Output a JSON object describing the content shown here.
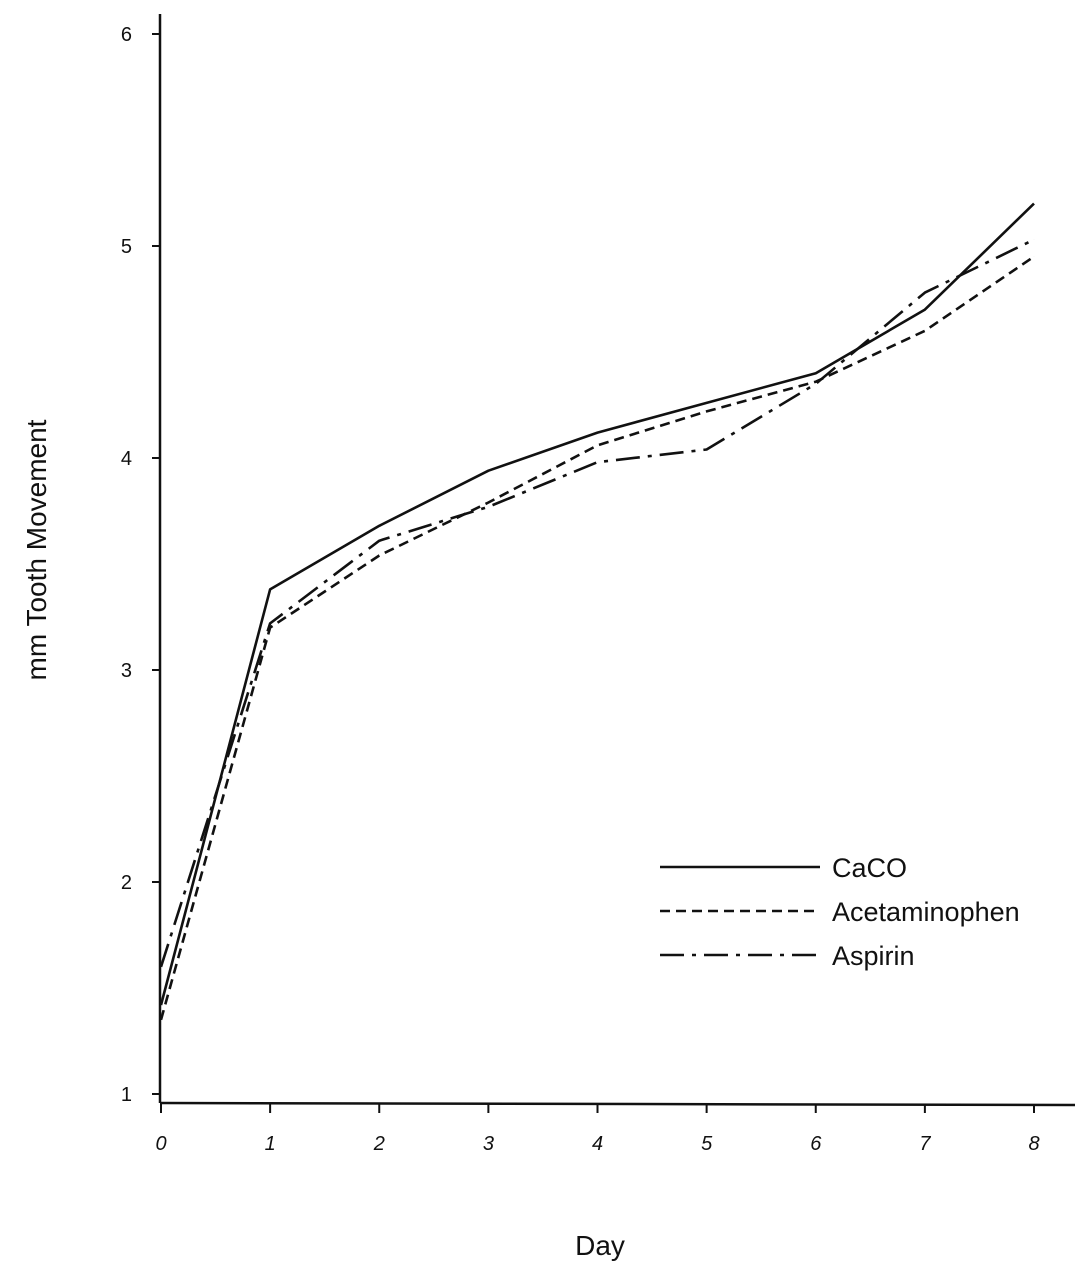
{
  "chart_data": {
    "type": "line",
    "xlabel": "Day",
    "ylabel": "mm Tooth Movement",
    "xlim": [
      0,
      8
    ],
    "ylim": [
      1,
      6
    ],
    "x_ticks": [
      "0",
      "1",
      "2",
      "3",
      "4",
      "5",
      "6",
      "7",
      "8"
    ],
    "y_ticks": [
      "1",
      "2",
      "3",
      "4",
      "5",
      "6"
    ],
    "grid": false,
    "legend_position": "lower-right",
    "x": [
      0,
      1,
      2,
      3,
      4,
      5,
      6,
      7,
      8
    ],
    "series": [
      {
        "name": "CaCO",
        "style": "solid",
        "values": [
          1.42,
          3.38,
          3.68,
          3.94,
          4.12,
          4.26,
          4.4,
          4.7,
          5.2
        ]
      },
      {
        "name": "Acetaminophen",
        "style": "dashed",
        "values": [
          1.35,
          3.2,
          3.54,
          3.79,
          4.06,
          4.22,
          4.36,
          4.6,
          4.95
        ]
      },
      {
        "name": "Aspirin",
        "style": "dash-dot",
        "values": [
          1.6,
          3.22,
          3.61,
          3.77,
          3.98,
          4.04,
          4.35,
          4.78,
          5.03
        ]
      }
    ]
  }
}
